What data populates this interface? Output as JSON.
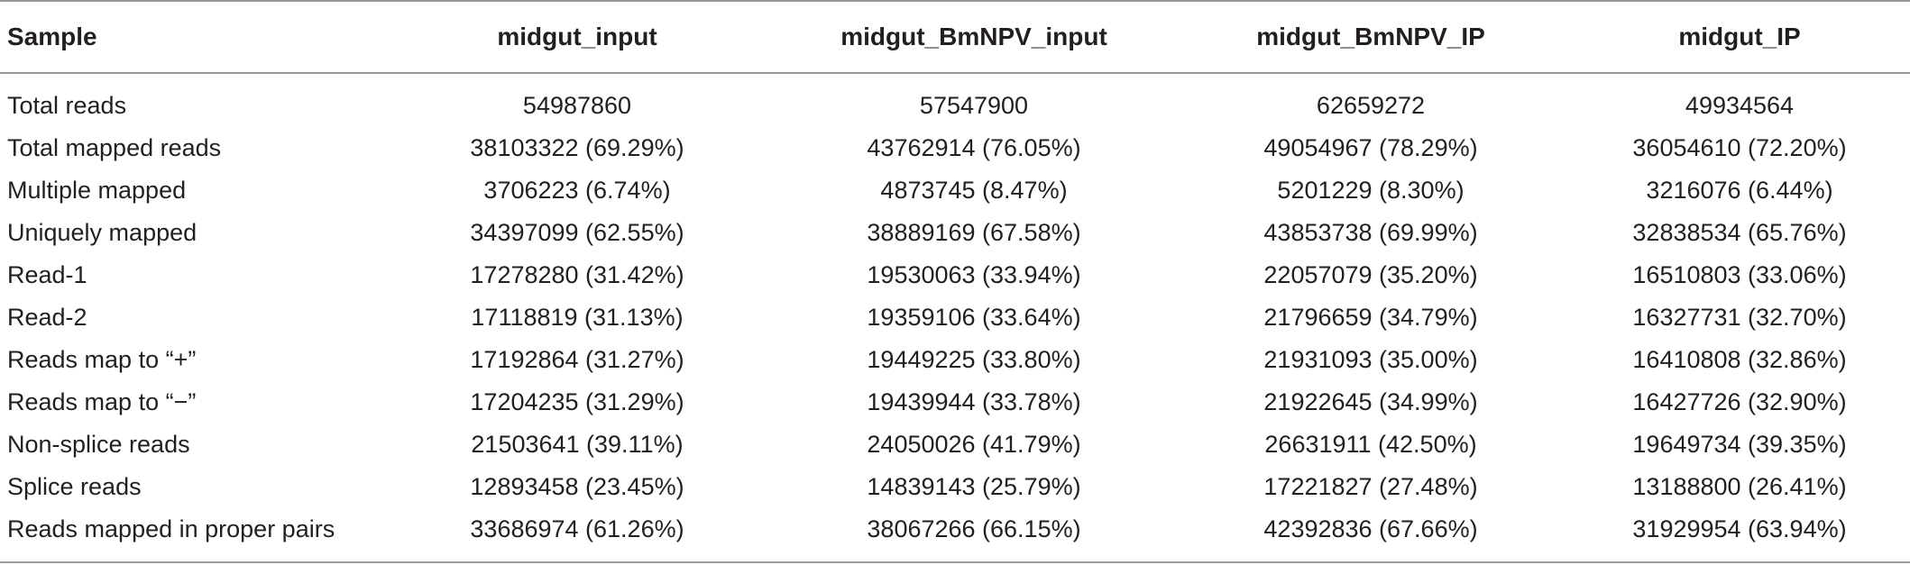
{
  "table": {
    "headers": [
      "Sample",
      "midgut_input",
      "midgut_BmNPV_input",
      "midgut_BmNPV_IP",
      "midgut_IP"
    ],
    "rows": [
      [
        "Total reads",
        "54987860",
        "57547900",
        "62659272",
        "49934564"
      ],
      [
        "Total mapped reads",
        "38103322 (69.29%)",
        "43762914 (76.05%)",
        "49054967 (78.29%)",
        "36054610 (72.20%)"
      ],
      [
        "Multiple mapped",
        "3706223 (6.74%)",
        "4873745 (8.47%)",
        "5201229 (8.30%)",
        "3216076 (6.44%)"
      ],
      [
        "Uniquely mapped",
        "34397099 (62.55%)",
        "38889169 (67.58%)",
        "43853738 (69.99%)",
        "32838534 (65.76%)"
      ],
      [
        "Read-1",
        "17278280 (31.42%)",
        "19530063 (33.94%)",
        "22057079 (35.20%)",
        "16510803 (33.06%)"
      ],
      [
        "Read-2",
        "17118819 (31.13%)",
        "19359106 (33.64%)",
        "21796659 (34.79%)",
        "16327731 (32.70%)"
      ],
      [
        "Reads map to “+”",
        "17192864 (31.27%)",
        "19449225 (33.80%)",
        "21931093 (35.00%)",
        "16410808 (32.86%)"
      ],
      [
        "Reads map to “−”",
        "17204235 (31.29%)",
        "19439944 (33.78%)",
        "21922645 (34.99%)",
        "16427726 (32.90%)"
      ],
      [
        "Non-splice reads",
        "21503641 (39.11%)",
        "24050026 (41.79%)",
        "26631911 (42.50%)",
        "19649734 (39.35%)"
      ],
      [
        "Splice reads",
        "12893458 (23.45%)",
        "14839143 (25.79%)",
        "17221827 (27.48%)",
        "13188800 (26.41%)"
      ],
      [
        "Reads mapped in proper pairs",
        "33686974 (61.26%)",
        "38067266 (66.15%)",
        "42392836 (67.66%)",
        "31929954 (63.94%)"
      ]
    ]
  }
}
